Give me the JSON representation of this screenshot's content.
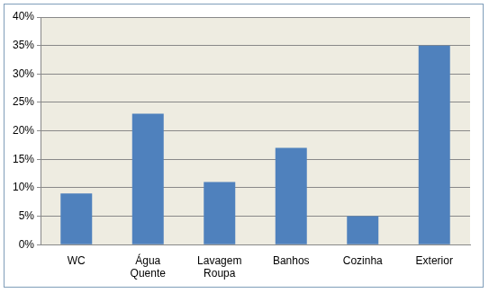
{
  "chart_data": {
    "type": "bar",
    "categories": [
      "WC",
      "Água Quente",
      "Lavagem Roupa",
      "Banhos",
      "Cozinha",
      "Exterior"
    ],
    "values": [
      9,
      23,
      11,
      17,
      5,
      35
    ],
    "color": "#4f81bd",
    "ylim": [
      0,
      40
    ],
    "yticks": [
      {
        "value": 0,
        "label": "0%"
      },
      {
        "value": 5,
        "label": "5%"
      },
      {
        "value": 10,
        "label": "10%"
      },
      {
        "value": 15,
        "label": "15%"
      },
      {
        "value": 20,
        "label": "20%"
      },
      {
        "value": 25,
        "label": "25%"
      },
      {
        "value": 30,
        "label": "30%"
      },
      {
        "value": 35,
        "label": "35%"
      },
      {
        "value": 40,
        "label": "40%"
      }
    ],
    "grid": true
  }
}
